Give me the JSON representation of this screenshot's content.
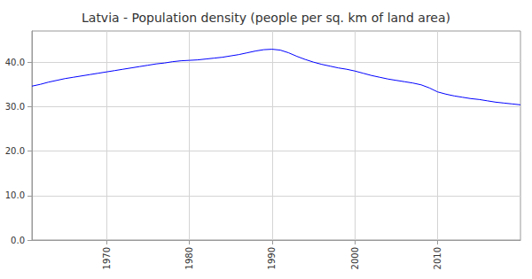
{
  "chart_data": {
    "type": "line",
    "title": "Latvia - Population density (people per sq. km of land area)",
    "color": "#0000ff",
    "grid": true,
    "x": [
      1961,
      1962,
      1963,
      1964,
      1965,
      1966,
      1967,
      1968,
      1969,
      1970,
      1971,
      1972,
      1973,
      1974,
      1975,
      1976,
      1977,
      1978,
      1979,
      1980,
      1981,
      1982,
      1983,
      1984,
      1985,
      1986,
      1987,
      1988,
      1989,
      1990,
      1991,
      1992,
      1993,
      1994,
      1995,
      1996,
      1997,
      1998,
      1999,
      2000,
      2001,
      2002,
      2003,
      2004,
      2005,
      2006,
      2007,
      2008,
      2009,
      2010,
      2011,
      2012,
      2013,
      2014,
      2015,
      2016,
      2017,
      2018,
      2019,
      2020
    ],
    "values": [
      34.6,
      35.0,
      35.5,
      35.9,
      36.3,
      36.6,
      36.9,
      37.2,
      37.5,
      37.8,
      38.1,
      38.4,
      38.7,
      39.0,
      39.3,
      39.6,
      39.8,
      40.1,
      40.3,
      40.4,
      40.5,
      40.7,
      40.9,
      41.1,
      41.4,
      41.7,
      42.1,
      42.5,
      42.8,
      42.9,
      42.7,
      42.1,
      41.3,
      40.6,
      40.0,
      39.5,
      39.1,
      38.7,
      38.4,
      38.0,
      37.5,
      37.0,
      36.6,
      36.2,
      35.9,
      35.6,
      35.3,
      34.9,
      34.2,
      33.3,
      32.8,
      32.4,
      32.1,
      31.8,
      31.6,
      31.3,
      31.0,
      30.8,
      30.6,
      30.4
    ],
    "xlim": [
      1961,
      2020
    ],
    "xticks": [
      1970,
      1980,
      1990,
      2000,
      2010
    ],
    "ylim": [
      0,
      47
    ],
    "yticks": [
      {
        "value": 0,
        "label": "0.0"
      },
      {
        "value": 10,
        "label": "10.0"
      },
      {
        "value": 20,
        "label": "20.0"
      },
      {
        "value": 30,
        "label": "30.0"
      },
      {
        "value": 40,
        "label": "40.0"
      }
    ]
  }
}
